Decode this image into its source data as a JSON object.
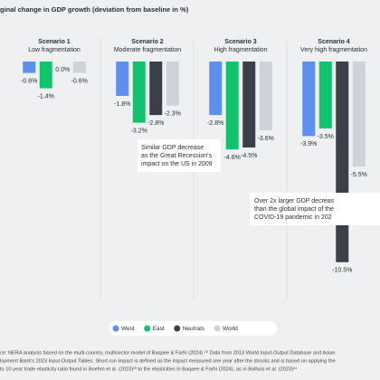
{
  "chart_data": {
    "type": "bar",
    "title": "ginal change in GDP growth (deviation from baseline in %)",
    "categories": [
      "Scenario 1",
      "Scenario 2",
      "Scenario 3",
      "Scenario 4"
    ],
    "category_subtitles": [
      "Low fragmentation",
      "Moderate fragmentation",
      "High fragmentation",
      "Very high fragmentation"
    ],
    "ylim": [
      -12.5,
      0
    ],
    "series": [
      {
        "name": "West",
        "color": "#5b8ff0",
        "values": [
          -0.6,
          -1.8,
          -2.8,
          -3.9
        ],
        "value_labels": [
          "-0.6%",
          "-1.8%",
          "-2.8%",
          "-3.9%"
        ]
      },
      {
        "name": "East",
        "color": "#10c46e",
        "values": [
          -1.4,
          -3.2,
          -4.6,
          -3.5
        ],
        "value_labels": [
          "-1.4%",
          "-3.2%",
          "-4.6%",
          "-3.5%"
        ]
      },
      {
        "name": "Neutrals",
        "color": "#3b3f4a",
        "values": [
          0.0,
          -2.8,
          -4.5,
          -10.5
        ],
        "value_labels": [
          "0.0%",
          "-2.8%",
          "-4.5%",
          "-10.5%"
        ]
      },
      {
        "name": "World",
        "color": "#cdd3d9",
        "values": [
          -0.6,
          -2.3,
          -3.6,
          -5.5
        ],
        "value_labels": [
          "-0.6%",
          "-2.3%",
          "-3.6%",
          "-5.5%"
        ]
      }
    ],
    "annotations": [
      {
        "lines": [
          "Similar GDP decrease",
          "as the Great Recession's",
          "impact on the US in 2009"
        ]
      },
      {
        "lines": [
          "Over 2x larger GDP decreas",
          "than the global impact of the",
          "COVID-19 pandemic in 202"
        ]
      }
    ],
    "source": [
      "ce: NERA analysis based on the multi-country, multisector model of Baqaee & Farhi (2024).¹⁰ Data from 2013 World Input-Output Database and Asian",
      "lopment Bank's 2023 Input-Output Tables. Short-run impact is defined as the impact measured one year after the shocks and is based on applying the",
      "to 10-year trade elasticity ratio found in Boehm et al. (2023)²³ to the elasticities in Baqaee & Farhi (2024), as in Bolhuis et al. (2023)²⁴"
    ]
  }
}
